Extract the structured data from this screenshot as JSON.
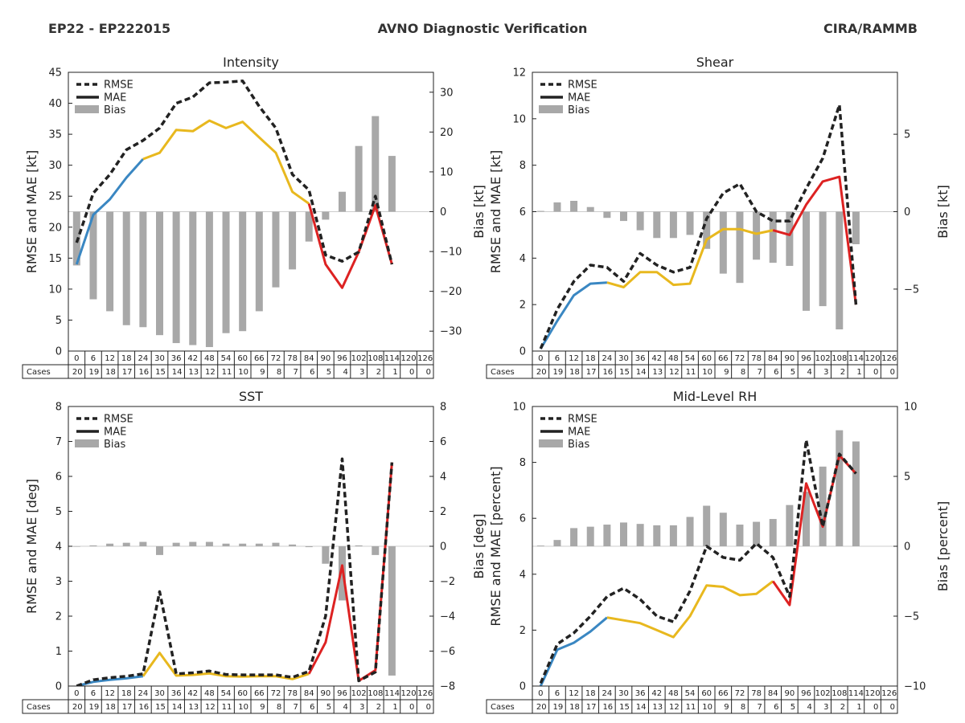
{
  "header": {
    "storm_id": "EP22 - EP222015",
    "title": "AVNO Diagnostic Verification",
    "agency": "CIRA/RAMMB"
  },
  "legend_labels": [
    "RMSE",
    "MAE",
    "Bias"
  ],
  "forecast_hours": [
    0,
    6,
    12,
    18,
    24,
    30,
    36,
    42,
    48,
    54,
    60,
    66,
    72,
    78,
    84,
    90,
    96,
    102,
    108,
    114,
    120,
    126
  ],
  "cases_label": "Cases",
  "cases": [
    20,
    19,
    18,
    17,
    16,
    15,
    14,
    13,
    12,
    11,
    10,
    9,
    8,
    7,
    6,
    5,
    4,
    3,
    2,
    1,
    0,
    0
  ],
  "colors": {
    "rmse": "#222222",
    "mae_early": "#3a87c2",
    "mae_mid": "#e8b81e",
    "mae_late": "#dd2222",
    "bias": "#a8a8a8"
  },
  "chart_data": [
    {
      "type": "line+bar",
      "title": "Intensity",
      "ylabel": "RMSE and MAE [kt]",
      "y2label": "Bias [kt]",
      "ylim": [
        0,
        45
      ],
      "yticks": [
        0,
        5,
        10,
        15,
        20,
        25,
        30,
        35,
        40,
        45
      ],
      "y2lim": [
        -35,
        35
      ],
      "y2ticks": [
        -30,
        -20,
        -10,
        0,
        10,
        20,
        30
      ],
      "y2ticklabels": [
        "−30",
        "−20",
        "−10",
        "0",
        "10",
        "20",
        "30"
      ],
      "rmse": [
        17.5,
        25.5,
        28.5,
        32.5,
        34.0,
        36.0,
        40.0,
        41.0,
        43.3,
        43.4,
        43.6,
        39.5,
        36.0,
        28.5,
        26.0,
        15.5,
        14.5,
        16.0,
        25.0,
        14.0
      ],
      "mae": [
        14.0,
        22.0,
        24.5,
        28.0,
        31.0,
        32.0,
        35.7,
        35.5,
        37.2,
        36.0,
        37.0,
        34.5,
        32.0,
        25.7,
        23.8,
        14.0,
        10.2,
        16.0,
        23.5,
        14.0
      ],
      "bias": [
        -13.5,
        -22,
        -25,
        -28.5,
        -29,
        -31,
        -33,
        -33.5,
        -34,
        -30.5,
        -30,
        -25,
        -19,
        -14.5,
        -7.5,
        -2,
        5,
        16.5,
        24,
        14
      ]
    },
    {
      "type": "line+bar",
      "title": "Shear",
      "ylabel": "RMSE and MAE [kt]",
      "y2label": "Bias [kt]",
      "ylim": [
        0,
        12
      ],
      "yticks": [
        0,
        2,
        4,
        6,
        8,
        10,
        12
      ],
      "y2lim": [
        -9,
        9
      ],
      "y2ticks": [
        -5,
        0,
        5
      ],
      "y2ticklabels": [
        "−5",
        "0",
        "5"
      ],
      "rmse": [
        0.1,
        1.8,
        3.0,
        3.7,
        3.6,
        3.0,
        4.2,
        3.7,
        3.4,
        3.6,
        5.7,
        6.8,
        7.2,
        6.0,
        5.6,
        5.6,
        7.0,
        8.3,
        10.6,
        2.0
      ],
      "mae": [
        0.1,
        1.3,
        2.4,
        2.9,
        2.95,
        2.75,
        3.4,
        3.4,
        2.85,
        2.9,
        4.8,
        5.25,
        5.25,
        5.05,
        5.2,
        5.0,
        6.3,
        7.3,
        7.5,
        2.0
      ],
      "bias": [
        0.05,
        0.6,
        0.7,
        0.3,
        -0.4,
        -0.6,
        -1.2,
        -1.7,
        -1.7,
        -1.5,
        -2.4,
        -4.0,
        -4.6,
        -3.1,
        -3.3,
        -3.5,
        -6.4,
        -6.1,
        -7.6,
        -2.1
      ]
    },
    {
      "type": "line+bar",
      "title": "SST",
      "ylabel": "RMSE and MAE [deg]",
      "y2label": "Bias [deg]",
      "ylim": [
        0,
        8
      ],
      "yticks": [
        0,
        1,
        2,
        3,
        4,
        5,
        6,
        7,
        8
      ],
      "y2lim": [
        -8,
        8
      ],
      "y2ticks": [
        -8,
        -6,
        -4,
        -2,
        0,
        2,
        4,
        6,
        8
      ],
      "y2ticklabels": [
        "−8",
        "−6",
        "−4",
        "−2",
        "0",
        "2",
        "4",
        "6",
        "8"
      ],
      "rmse": [
        0.0,
        0.18,
        0.24,
        0.28,
        0.35,
        2.7,
        0.35,
        0.38,
        0.43,
        0.33,
        0.32,
        0.32,
        0.32,
        0.25,
        0.42,
        2.0,
        6.5,
        0.15,
        0.4,
        6.4
      ],
      "mae": [
        0.0,
        0.12,
        0.18,
        0.22,
        0.28,
        0.95,
        0.3,
        0.32,
        0.36,
        0.28,
        0.27,
        0.28,
        0.28,
        0.2,
        0.35,
        1.25,
        3.45,
        0.15,
        0.45,
        6.4
      ],
      "bias": [
        0.0,
        0.05,
        0.15,
        0.2,
        0.25,
        -0.5,
        0.2,
        0.25,
        0.25,
        0.15,
        0.15,
        0.15,
        0.2,
        0.1,
        -0.05,
        -1.0,
        -3.1,
        0.05,
        -0.5,
        -7.4
      ]
    },
    {
      "type": "line+bar",
      "title": "Mid-Level RH",
      "ylabel": "RMSE and MAE [percent]",
      "y2label": "Bias [percent]",
      "ylim": [
        0,
        10
      ],
      "yticks": [
        0,
        2,
        4,
        6,
        8,
        10
      ],
      "y2lim": [
        -10,
        10
      ],
      "y2ticks": [
        -10,
        -5,
        0,
        5,
        10
      ],
      "y2ticklabels": [
        "−10",
        "−5",
        "0",
        "5",
        "10"
      ],
      "rmse": [
        0.1,
        1.5,
        1.9,
        2.5,
        3.2,
        3.5,
        3.1,
        2.5,
        2.3,
        3.4,
        5.0,
        4.6,
        4.5,
        5.1,
        4.6,
        3.2,
        8.8,
        5.7,
        8.3,
        7.6
      ],
      "mae": [
        0.0,
        1.3,
        1.55,
        1.95,
        2.45,
        2.35,
        2.25,
        2.0,
        1.75,
        2.5,
        3.6,
        3.55,
        3.25,
        3.3,
        3.75,
        2.9,
        7.25,
        5.7,
        8.25,
        7.6
      ],
      "bias": [
        0.05,
        0.45,
        1.3,
        1.4,
        1.55,
        1.7,
        1.6,
        1.5,
        1.5,
        2.1,
        2.9,
        2.4,
        1.55,
        1.75,
        1.95,
        2.95,
        3.9,
        5.7,
        8.3,
        7.5
      ]
    }
  ]
}
